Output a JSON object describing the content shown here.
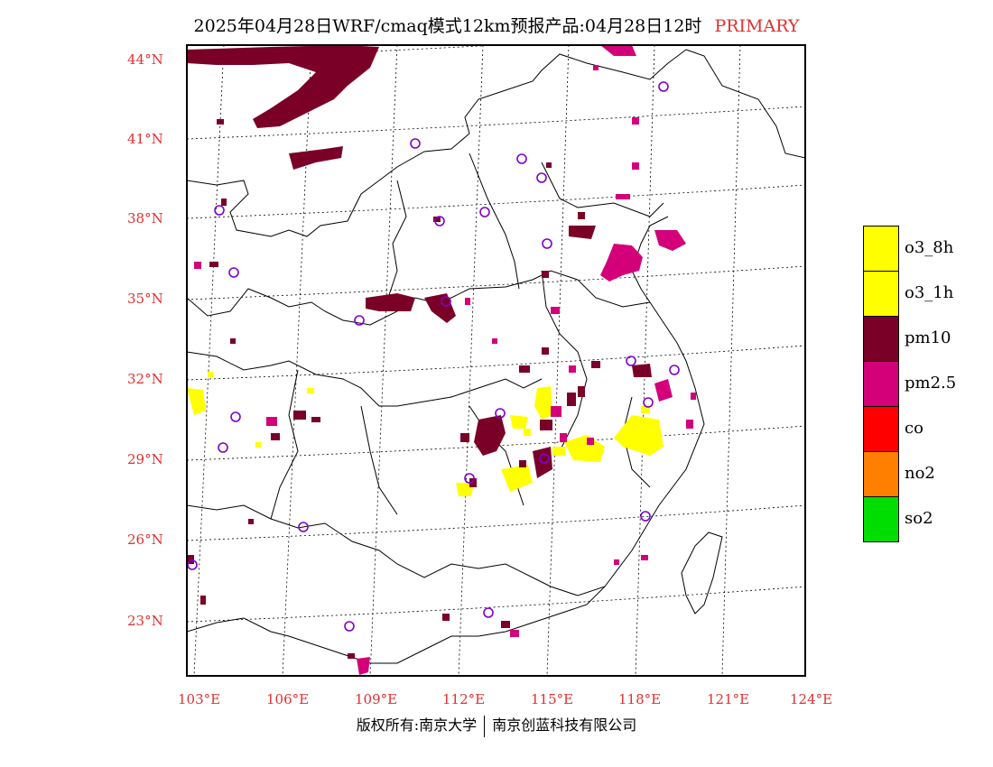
{
  "title": {
    "main": "2025年04月28日WRF/cmaq模式12km预报产品:04月28日12时",
    "tag": "PRIMARY",
    "tag_color": "#e03030"
  },
  "axes": {
    "lat_labels": [
      "44°N",
      "41°N",
      "38°N",
      "35°N",
      "32°N",
      "29°N",
      "26°N",
      "23°N"
    ],
    "lon_labels": [
      "103°E",
      "106°E",
      "109°E",
      "112°E",
      "115°E",
      "118°E",
      "121°E",
      "124°E"
    ],
    "label_color": "#e03030"
  },
  "legend": {
    "items": [
      {
        "label": "o3_8h",
        "color": "#ffff00"
      },
      {
        "label": "o3_1h",
        "color": "#ffff00"
      },
      {
        "label": "pm10",
        "color": "#7a0028"
      },
      {
        "label": "pm2.5",
        "color": "#d4007a"
      },
      {
        "label": "co",
        "color": "#ff0000"
      },
      {
        "label": "no2",
        "color": "#ff7f00"
      },
      {
        "label": "so2",
        "color": "#00dd00"
      }
    ]
  },
  "footer": {
    "left": "版权所有:南京大学",
    "right": "南京创蓝科技有限公司"
  },
  "map_colors": {
    "pm10": "#7a0028",
    "pm25": "#d4007a",
    "o3": "#ffff00",
    "station": "#7a00d0",
    "border": "#000000"
  }
}
